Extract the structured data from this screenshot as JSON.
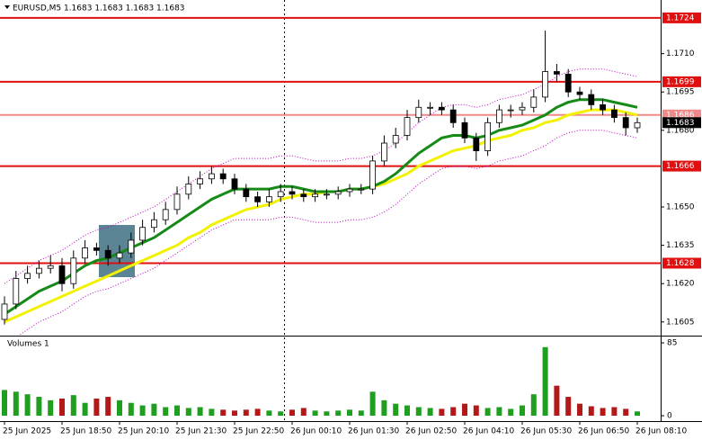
{
  "chart_data": [
    {
      "type": "candlestick",
      "title": "EURUSD,M5  1.1683 1.1683 1.1683 1.1683",
      "open": [
        1.1606,
        1.1612,
        1.1622,
        1.1624,
        1.1626,
        1.1627,
        1.162,
        1.163,
        1.1634,
        1.1633,
        1.163,
        1.1632,
        1.1637,
        1.1642,
        1.1645,
        1.1649,
        1.1655,
        1.1659,
        1.1661,
        1.1663,
        1.1661,
        1.1657,
        1.1654,
        1.1652,
        1.1654,
        1.1656,
        1.1655,
        1.1654,
        1.1655,
        1.1655,
        1.1656,
        1.1657,
        1.1657,
        1.1668,
        1.1675,
        1.1678,
        1.1685,
        1.1689,
        1.1689,
        1.1688,
        1.1683,
        1.1677,
        1.1672,
        1.1683,
        1.1688,
        1.1688,
        1.1689,
        1.1693,
        1.1703,
        1.1702,
        1.1695,
        1.1694,
        1.169,
        1.1688,
        1.1685,
        1.1681
      ],
      "high": [
        1.1615,
        1.1625,
        1.1627,
        1.1629,
        1.1631,
        1.163,
        1.1633,
        1.1637,
        1.1636,
        1.1635,
        1.1635,
        1.164,
        1.1645,
        1.1648,
        1.1652,
        1.1658,
        1.1662,
        1.1664,
        1.1666,
        1.1665,
        1.1663,
        1.1659,
        1.1656,
        1.1657,
        1.1659,
        1.1658,
        1.1657,
        1.1657,
        1.1657,
        1.1658,
        1.1659,
        1.1659,
        1.167,
        1.1678,
        1.1681,
        1.1688,
        1.1692,
        1.1691,
        1.1691,
        1.169,
        1.1685,
        1.1679,
        1.1685,
        1.169,
        1.169,
        1.1691,
        1.1696,
        1.1719,
        1.1706,
        1.1704,
        1.1697,
        1.1696,
        1.1692,
        1.169,
        1.1687,
        1.1685
      ],
      "low": [
        1.1604,
        1.161,
        1.162,
        1.1622,
        1.1624,
        1.1617,
        1.1618,
        1.1628,
        1.1631,
        1.1627,
        1.1628,
        1.163,
        1.1635,
        1.164,
        1.1643,
        1.1647,
        1.1653,
        1.1657,
        1.1659,
        1.1659,
        1.1655,
        1.1652,
        1.165,
        1.165,
        1.1652,
        1.1653,
        1.1652,
        1.1652,
        1.1653,
        1.1653,
        1.1654,
        1.1655,
        1.1655,
        1.1666,
        1.1673,
        1.1676,
        1.1683,
        1.1686,
        1.1686,
        1.1681,
        1.1675,
        1.1668,
        1.167,
        1.1681,
        1.1685,
        1.1686,
        1.1687,
        1.1691,
        1.1699,
        1.1693,
        1.1692,
        1.1688,
        1.1686,
        1.1683,
        1.1678,
        1.1679
      ],
      "close": [
        1.1612,
        1.1622,
        1.1624,
        1.1626,
        1.1627,
        1.162,
        1.163,
        1.1634,
        1.1633,
        1.163,
        1.1632,
        1.1637,
        1.1642,
        1.1645,
        1.1649,
        1.1655,
        1.1659,
        1.1661,
        1.1663,
        1.1661,
        1.1657,
        1.1654,
        1.1652,
        1.1654,
        1.1656,
        1.1655,
        1.1654,
        1.1655,
        1.1655,
        1.1656,
        1.1657,
        1.1657,
        1.1668,
        1.1675,
        1.1678,
        1.1685,
        1.1689,
        1.1689,
        1.1688,
        1.1683,
        1.1677,
        1.1672,
        1.1683,
        1.1688,
        1.1688,
        1.1689,
        1.1693,
        1.1703,
        1.1702,
        1.1695,
        1.1694,
        1.169,
        1.1688,
        1.1685,
        1.1681,
        1.1683
      ],
      "overlays": [
        {
          "color": "#c000c0",
          "style": "dotted",
          "values": [
            1.162,
            1.1623,
            1.1626,
            1.1629,
            1.1631,
            1.1633,
            1.1636,
            1.1639,
            1.1641,
            1.1642,
            1.1644,
            1.1646,
            1.1648,
            1.165,
            1.1653,
            1.1656,
            1.1659,
            1.1662,
            1.1665,
            1.1667,
            1.1669,
            1.1669,
            1.1669,
            1.1669,
            1.167,
            1.167,
            1.1669,
            1.1668,
            1.1668,
            1.1668,
            1.1669,
            1.1669,
            1.167,
            1.1672,
            1.1675,
            1.1679,
            1.1683,
            1.1686,
            1.1689,
            1.169,
            1.169,
            1.1689,
            1.169,
            1.1692,
            1.1693,
            1.1694,
            1.1696,
            1.1698,
            1.1701,
            1.1703,
            1.1704,
            1.1704,
            1.1704,
            1.1703,
            1.1702,
            1.1701
          ]
        },
        {
          "color": "#c000c0",
          "style": "dotted",
          "values": [
            1.1596,
            1.1599,
            1.1602,
            1.1605,
            1.1607,
            1.1609,
            1.1612,
            1.1615,
            1.1617,
            1.1618,
            1.162,
            1.1622,
            1.1624,
            1.1626,
            1.1629,
            1.1632,
            1.1635,
            1.1638,
            1.1641,
            1.1643,
            1.1645,
            1.1645,
            1.1645,
            1.1645,
            1.1646,
            1.1646,
            1.1645,
            1.1644,
            1.1644,
            1.1644,
            1.1645,
            1.1645,
            1.1646,
            1.1648,
            1.1651,
            1.1655,
            1.1659,
            1.1662,
            1.1665,
            1.1666,
            1.1666,
            1.1665,
            1.1666,
            1.1668,
            1.1669,
            1.167,
            1.1672,
            1.1674,
            1.1677,
            1.1679,
            1.168,
            1.168,
            1.168,
            1.1679,
            1.1678,
            1.1677
          ]
        },
        {
          "color": "#f2f200",
          "style": "solid",
          "values": [
            1.1605,
            1.1607,
            1.1609,
            1.1611,
            1.1613,
            1.1615,
            1.1617,
            1.1619,
            1.1621,
            1.1623,
            1.1625,
            1.1627,
            1.1629,
            1.1631,
            1.1633,
            1.1635,
            1.1638,
            1.164,
            1.1643,
            1.1645,
            1.1647,
            1.1649,
            1.165,
            1.1651,
            1.1653,
            1.1654,
            1.1655,
            1.1655,
            1.1656,
            1.1656,
            1.1657,
            1.1657,
            1.1658,
            1.1659,
            1.1661,
            1.1663,
            1.1666,
            1.1668,
            1.167,
            1.1672,
            1.1673,
            1.1674,
            1.1676,
            1.1677,
            1.1678,
            1.168,
            1.1681,
            1.1683,
            1.1684,
            1.1686,
            1.1687,
            1.1688,
            1.1688,
            1.1688,
            1.1687,
            1.1686
          ]
        },
        {
          "color": "#168a16",
          "style": "solid",
          "values": [
            1.1608,
            1.1611,
            1.1614,
            1.1617,
            1.1619,
            1.1621,
            1.1624,
            1.1627,
            1.1629,
            1.163,
            1.1632,
            1.1634,
            1.1636,
            1.1638,
            1.1641,
            1.1644,
            1.1647,
            1.165,
            1.1653,
            1.1655,
            1.1657,
            1.1657,
            1.1657,
            1.1657,
            1.1658,
            1.1658,
            1.1657,
            1.1656,
            1.1656,
            1.1656,
            1.1657,
            1.1657,
            1.1658,
            1.166,
            1.1663,
            1.1667,
            1.1671,
            1.1674,
            1.1677,
            1.1678,
            1.1678,
            1.1677,
            1.1678,
            1.168,
            1.1681,
            1.1682,
            1.1684,
            1.1686,
            1.1689,
            1.1691,
            1.1692,
            1.1692,
            1.1692,
            1.1691,
            1.169,
            1.1689
          ]
        }
      ],
      "levels": [
        {
          "value": 1.1724,
          "color": "#e01010"
        },
        {
          "value": 1.1699,
          "color": "#e01010"
        },
        {
          "value": 1.1686,
          "color": "#f08a8a"
        },
        {
          "value": 1.1666,
          "color": "#e01010"
        },
        {
          "value": 1.1628,
          "color": "#e01010"
        }
      ],
      "current_price": 1.1683,
      "ylim": [
        1.16,
        1.1731
      ],
      "yticks": [
        {
          "value": 1.171,
          "label": "1.1710"
        },
        1.1695,
        {
          "value": 1.168,
          "label": "1.1680"
        },
        {
          "value": 1.165,
          "label": "1.1650"
        },
        1.1635,
        {
          "value": 1.162,
          "label": "1.1620"
        },
        1.1605
      ],
      "xticks": [
        {
          "value": 0,
          "label": "25 Jun 2025"
        },
        {
          "value": 5,
          "label": "25 Jun 18:50"
        },
        {
          "value": 10,
          "label": "25 Jun 20:10"
        },
        {
          "value": 15,
          "label": "25 Jun 21:30"
        },
        {
          "value": 20,
          "label": "25 Jun 22:50"
        },
        {
          "value": 25,
          "label": "26 Jun 00:10"
        },
        {
          "value": 30,
          "label": "26 Jun 01:30"
        },
        {
          "value": 35,
          "label": "26 Jun 02:50"
        },
        {
          "value": 40,
          "label": "26 Jun 04:10"
        },
        {
          "value": 45,
          "label": "26 Jun 05:30"
        },
        {
          "value": 50,
          "label": "26 Jun 06:50"
        },
        {
          "value": 55,
          "label": "26 Jun 08:10"
        }
      ]
    },
    {
      "type": "volume",
      "title": "Volumes 1",
      "values": [
        30,
        28,
        25,
        22,
        18,
        20,
        24,
        15,
        20,
        22,
        18,
        15,
        12,
        14,
        10,
        12,
        9,
        10,
        8,
        7,
        6,
        7,
        8,
        6,
        5,
        7,
        9,
        6,
        5,
        6,
        7,
        6,
        28,
        18,
        14,
        12,
        10,
        9,
        8,
        10,
        14,
        12,
        9,
        10,
        8,
        12,
        25,
        80,
        35,
        22,
        14,
        11,
        9,
        10,
        8,
        5
      ],
      "up_color": "#1f9e1f",
      "down_color": "#b41818",
      "ylim": [
        0,
        85
      ],
      "yticks": [
        85,
        0
      ]
    }
  ]
}
